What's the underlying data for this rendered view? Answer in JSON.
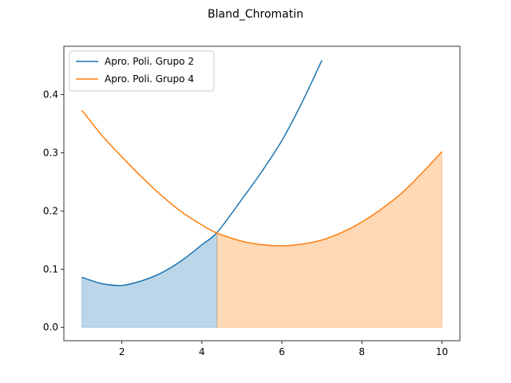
{
  "chart_data": {
    "type": "line",
    "title": "Bland_Chromatin",
    "xlabel": "",
    "ylabel": "",
    "xlim": [
      0.55,
      10.45
    ],
    "ylim": [
      -0.023,
      0.483
    ],
    "x_ticks": [
      2,
      4,
      6,
      8,
      10
    ],
    "x_tick_labels": [
      "2",
      "4",
      "6",
      "8",
      "10"
    ],
    "y_ticks": [
      0.0,
      0.1,
      0.2,
      0.3,
      0.4
    ],
    "y_tick_labels": [
      "0.0",
      "0.1",
      "0.2",
      "0.3",
      "0.4"
    ],
    "grid": false,
    "legend_position": "top-left",
    "intersection_x": 4.38,
    "series": [
      {
        "name": "Apro. Poli. Grupo 2",
        "color": "#1f77b4",
        "fill_color": "#1f77b4",
        "fill_range": [
          1,
          4.38
        ],
        "x": [
          1,
          1.5,
          2,
          2.5,
          3,
          3.5,
          4,
          4.38,
          5,
          5.5,
          6,
          6.5,
          7
        ],
        "y": [
          0.086,
          0.075,
          0.072,
          0.08,
          0.094,
          0.115,
          0.142,
          0.163,
          0.22,
          0.268,
          0.321,
          0.386,
          0.459
        ]
      },
      {
        "name": "Apro. Poli. Grupo 4",
        "color": "#ff7f0e",
        "fill_color": "#ff7f0e",
        "fill_range": [
          4.38,
          10
        ],
        "x": [
          1,
          1.5,
          2,
          2.5,
          3,
          3.5,
          4,
          4.38,
          5,
          5.5,
          6,
          6.5,
          7,
          7.5,
          8,
          8.5,
          9,
          9.5,
          10
        ],
        "y": [
          0.373,
          0.33,
          0.293,
          0.258,
          0.226,
          0.198,
          0.176,
          0.162,
          0.148,
          0.142,
          0.14,
          0.143,
          0.15,
          0.163,
          0.181,
          0.204,
          0.231,
          0.265,
          0.302
        ]
      }
    ]
  }
}
